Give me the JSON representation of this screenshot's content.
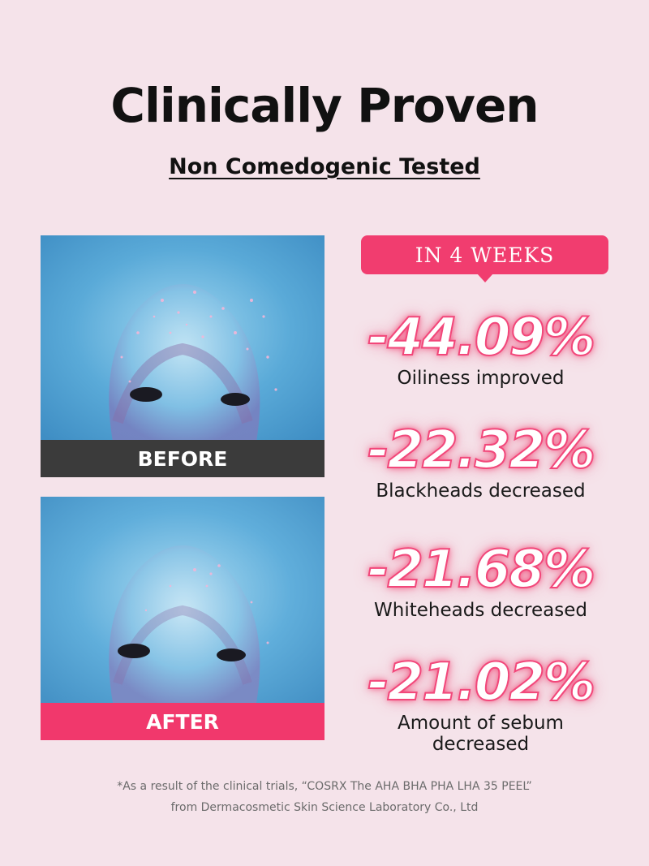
{
  "header": {
    "title": "Clinically Proven",
    "subtitle": "Non Comedogenic Tested"
  },
  "photos": {
    "before_label": "BEFORE",
    "after_label": "AFTER"
  },
  "badge": "IN 4 WEEKS",
  "stats": [
    {
      "value": "-44.09%",
      "label": "Oiliness improved"
    },
    {
      "value": "-22.32%",
      "label": "Blackheads decreased"
    },
    {
      "value": "-21.68%",
      "label": "Whiteheads decreased"
    },
    {
      "value": "-21.02%",
      "label": "Amount of sebum decreased"
    }
  ],
  "footnote": {
    "line1": "*As a result of the clinical trials, “COSRX The AHA BHA PHA LHA 35 PEEL”",
    "line2": "from Dermacosmetic Skin Science Laboratory Co., Ltd"
  },
  "colors": {
    "background": "#f5e3ea",
    "accent": "#f13d6f",
    "before_caption": "#3b3b3b"
  }
}
